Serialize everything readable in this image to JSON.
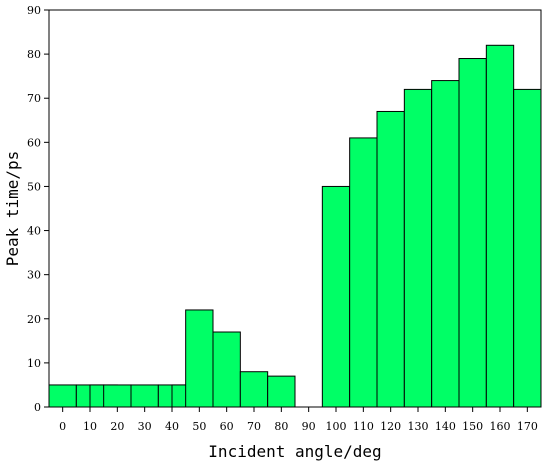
{
  "chart_data": {
    "type": "bar",
    "xlabel": "Incident angle/deg",
    "ylabel": "Peak time/ps",
    "ylim": [
      0,
      90
    ],
    "xlim": [
      -5,
      175
    ],
    "yticks": [
      0,
      10,
      20,
      30,
      40,
      50,
      60,
      70,
      80,
      90
    ],
    "xticks": [
      0,
      10,
      20,
      30,
      40,
      50,
      60,
      70,
      80,
      90,
      100,
      110,
      120,
      130,
      140,
      150,
      160,
      170
    ],
    "bar_color": "#00ff66",
    "grid": false,
    "legend": "none",
    "x": [
      0,
      10,
      15,
      20,
      30,
      40,
      45,
      50,
      60,
      70,
      80,
      100,
      110,
      120,
      130,
      140,
      150,
      160,
      170
    ],
    "values": [
      5,
      5,
      5,
      5,
      5,
      5,
      5,
      22,
      17,
      8,
      7,
      50,
      61,
      67,
      72,
      74,
      79,
      82,
      72
    ]
  }
}
